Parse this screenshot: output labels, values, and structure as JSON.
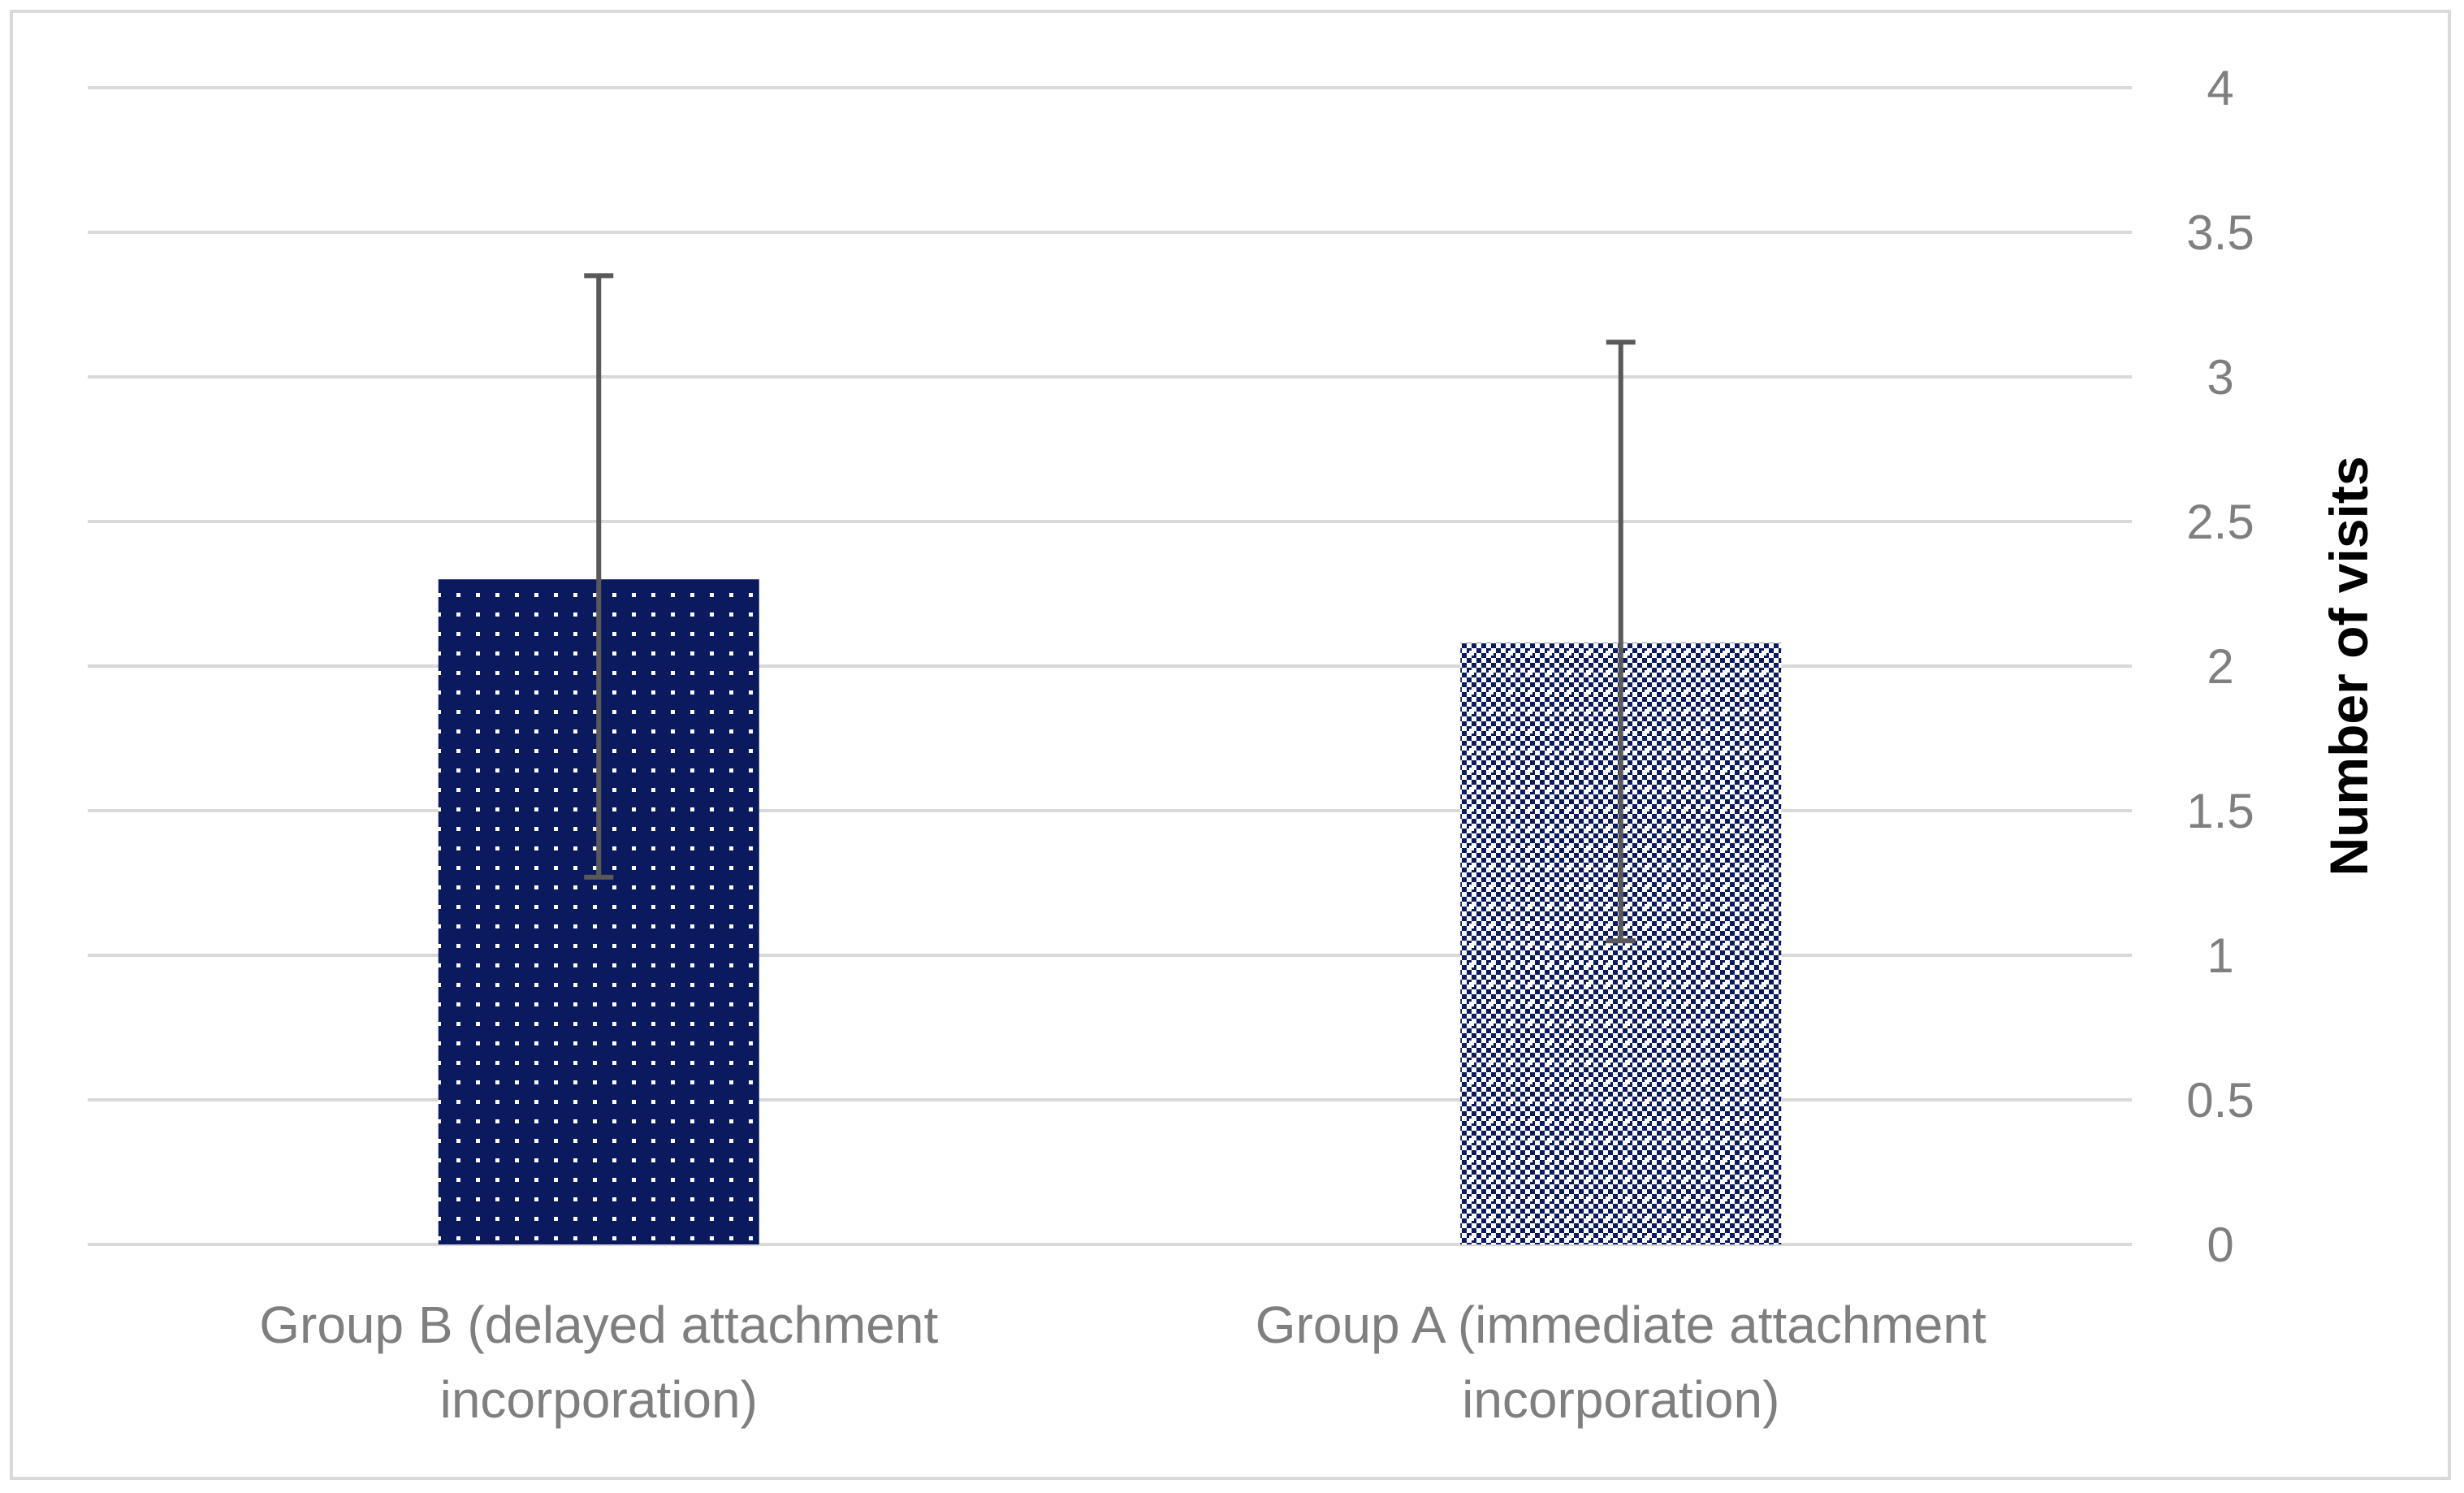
{
  "chart_data": {
    "type": "bar",
    "categories": [
      [
        "Group B (delayed attachment",
        "incorporation)"
      ],
      [
        "Group A (immediate attachment",
        "incorporation)"
      ]
    ],
    "values": [
      2.3,
      2.08
    ],
    "error_bars": [
      {
        "low": 1.27,
        "high": 3.35
      },
      {
        "low": 1.05,
        "high": 3.12
      }
    ],
    "ylabel": "Number of visits",
    "xlabel": "",
    "title": "",
    "ylim": [
      0,
      4
    ],
    "yticks": [
      0,
      0.5,
      1,
      1.5,
      2,
      2.5,
      3,
      3.5,
      4
    ],
    "y_axis_side": "right",
    "grid": true,
    "colors": {
      "bar": "#0b1a5e",
      "dot": "#ffffff",
      "grid": "#d9d9d9",
      "error_bar": "#595959"
    }
  }
}
